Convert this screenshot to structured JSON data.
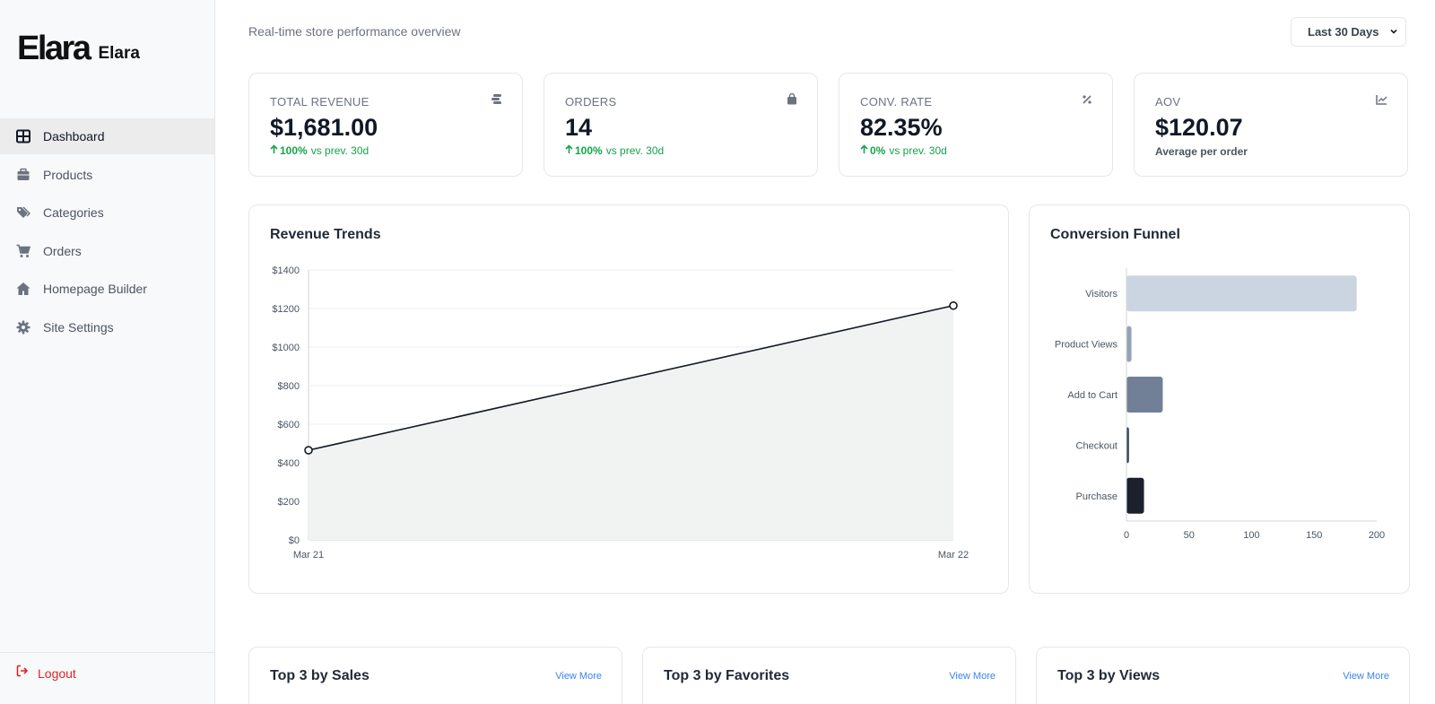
{
  "sidebar": {
    "brand_logo": "Elara",
    "brand_name": "Elara",
    "items": [
      {
        "label": "Dashboard",
        "icon": "grid-icon"
      },
      {
        "label": "Products",
        "icon": "box-icon"
      },
      {
        "label": "Categories",
        "icon": "tags-icon"
      },
      {
        "label": "Orders",
        "icon": "cart-icon"
      },
      {
        "label": "Homepage Builder",
        "icon": "home-icon"
      },
      {
        "label": "Site Settings",
        "icon": "gear-icon"
      }
    ],
    "logout_label": "Logout"
  },
  "header": {
    "subtitle": "Real-time store performance overview",
    "range_value": "Last 30 Days"
  },
  "stats": [
    {
      "label": "TOTAL REVENUE",
      "value": "$1,681.00",
      "delta": "100%",
      "delta_suffix": "vs prev. 30d",
      "icon": "coins-icon"
    },
    {
      "label": "ORDERS",
      "value": "14",
      "delta": "100%",
      "delta_suffix": "vs prev. 30d",
      "icon": "bag-icon"
    },
    {
      "label": "CONV. RATE",
      "value": "82.35%",
      "delta": "0%",
      "delta_suffix": "vs prev. 30d",
      "icon": "percent-icon"
    },
    {
      "label": "AOV",
      "value": "$120.07",
      "note": "Average per order",
      "icon": "chart-line-icon"
    }
  ],
  "revenue_panel": {
    "title": "Revenue Trends"
  },
  "funnel_panel": {
    "title": "Conversion Funnel"
  },
  "chart_data": [
    {
      "type": "area",
      "title": "Revenue Trends",
      "x": [
        "Mar 21",
        "Mar 22"
      ],
      "values": [
        465,
        1215
      ],
      "ylim": [
        0,
        1400
      ],
      "yticks": [
        "$0",
        "$200",
        "$400",
        "$600",
        "$800",
        "$1000",
        "$1200",
        "$1400"
      ],
      "grid": true,
      "colors": {
        "line": "#111827",
        "fill": "#f1f2f2"
      }
    },
    {
      "type": "bar",
      "orientation": "horizontal",
      "title": "Conversion Funnel",
      "categories": [
        "Visitors",
        "Product Views",
        "Add to Cart",
        "Checkout",
        "Purchase"
      ],
      "values": [
        184,
        4,
        29,
        2,
        14
      ],
      "xlim": [
        0,
        200
      ],
      "xticks": [
        "0",
        "50",
        "100",
        "150",
        "200"
      ],
      "colors": [
        "#cbd5e1",
        "#94a3b8",
        "#718096",
        "#334155",
        "#1a202c"
      ]
    }
  ],
  "bottom_cards": [
    {
      "title": "Top 3 by Sales",
      "link": "View More"
    },
    {
      "title": "Top 3 by Favorites",
      "link": "View More"
    },
    {
      "title": "Top 3 by Views",
      "link": "View More"
    }
  ]
}
